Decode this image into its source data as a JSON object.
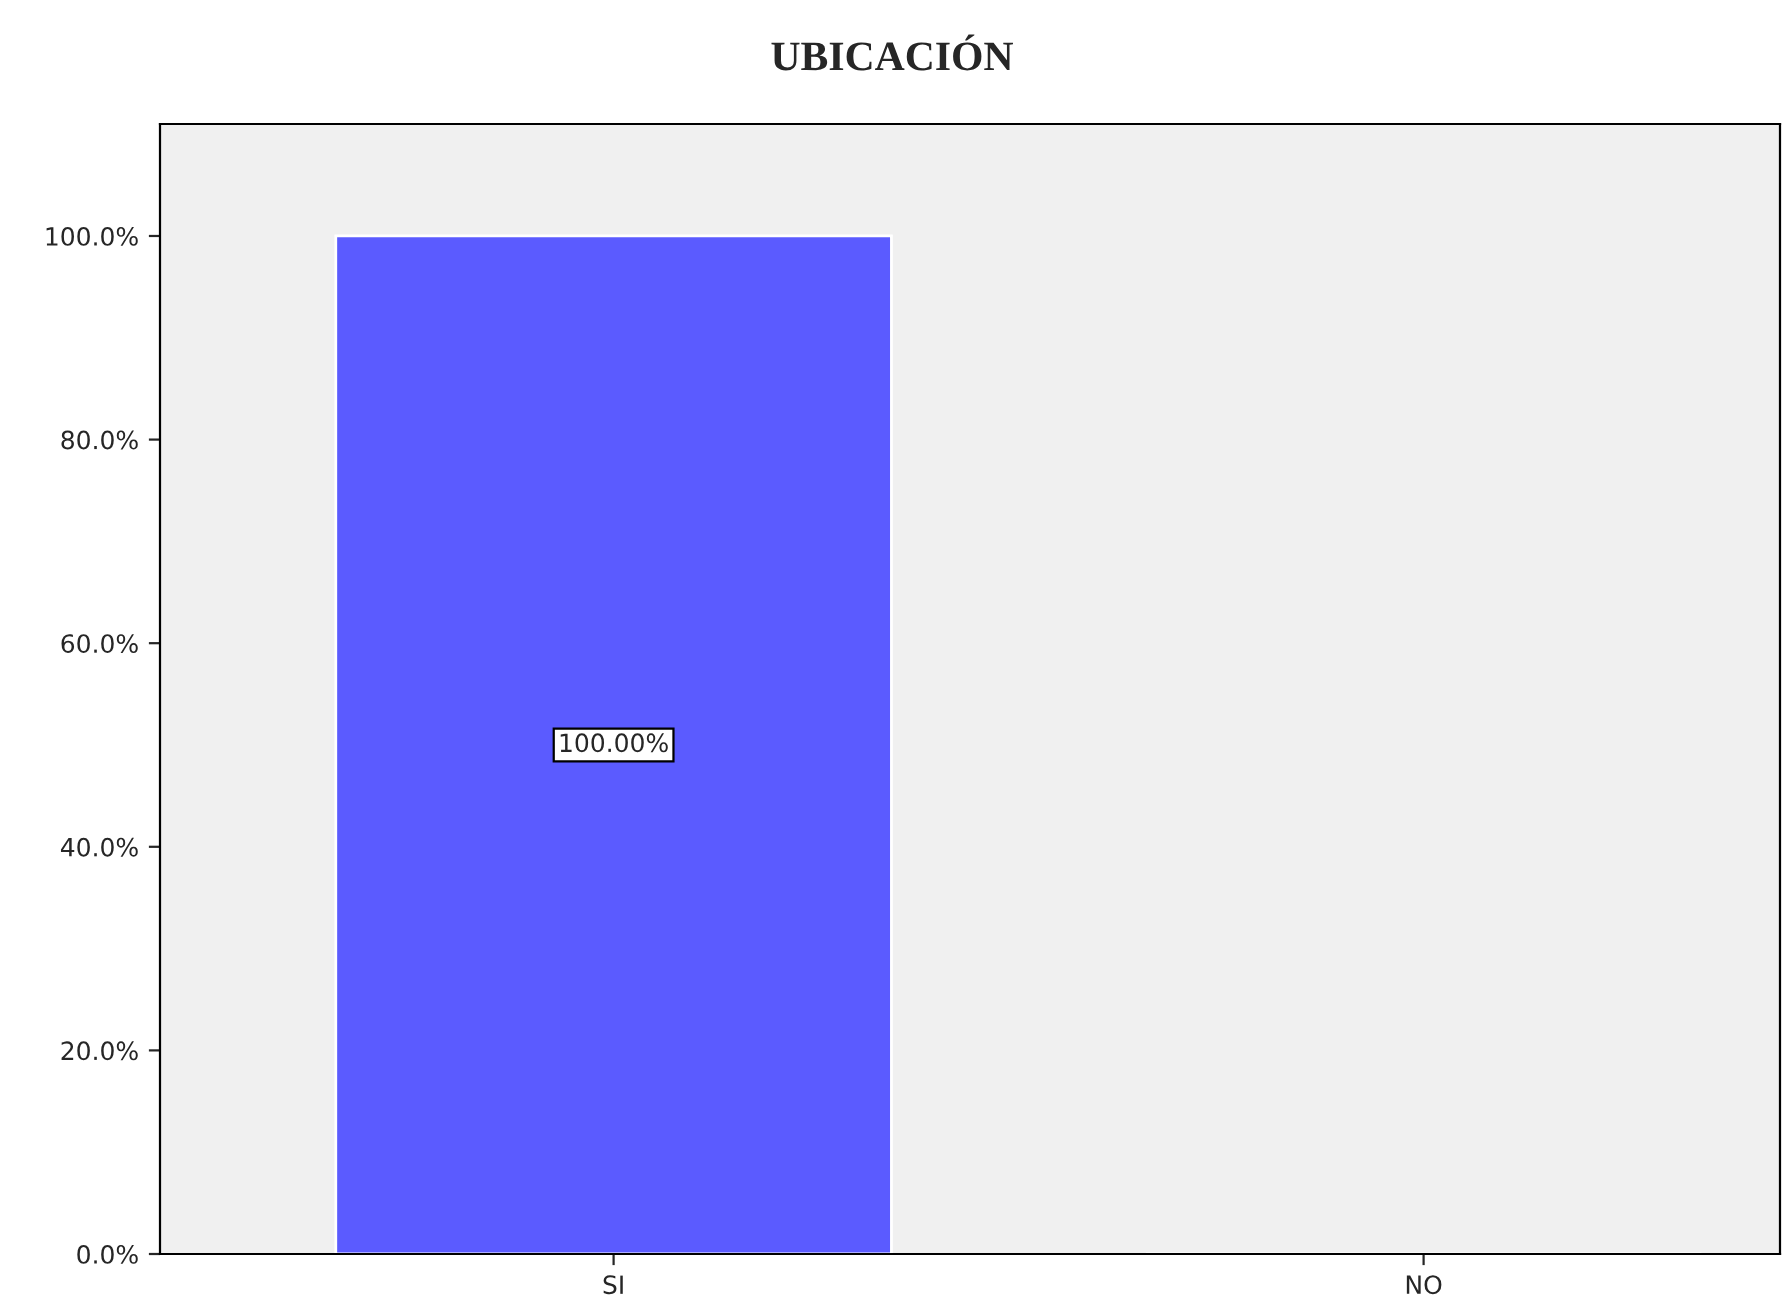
{
  "chart_data": {
    "type": "bar",
    "title": "UBICACIÓN",
    "categories": [
      "SI",
      "NO"
    ],
    "values": [
      100,
      0
    ],
    "value_labels": [
      "100.00%",
      null
    ],
    "color": "#5b5bff",
    "ylim": [
      0,
      111
    ],
    "yticks": [
      {
        "value": 0,
        "label": "0.0%"
      },
      {
        "value": 20,
        "label": "20.0%"
      },
      {
        "value": 40,
        "label": "40.0%"
      },
      {
        "value": 60,
        "label": "60.0%"
      },
      {
        "value": 80,
        "label": "80.0%"
      },
      {
        "value": 100,
        "label": "100.0%"
      }
    ],
    "grid": false,
    "legend": false
  }
}
